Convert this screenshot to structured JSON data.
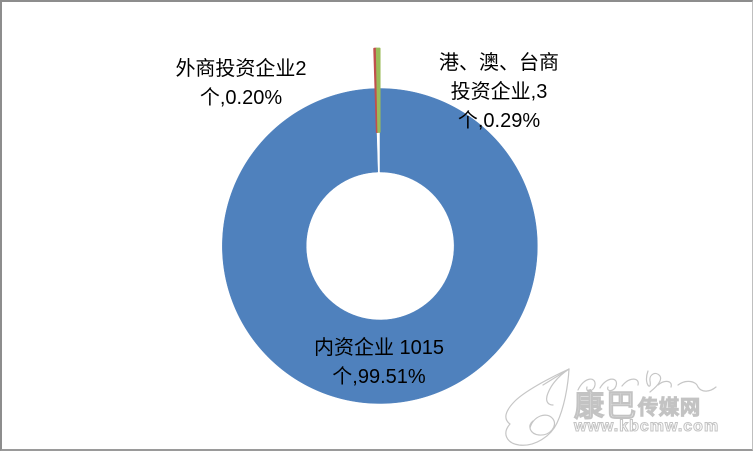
{
  "frame": {
    "background": "#ffffff",
    "border_color": "#8d8d8d"
  },
  "chart_data": {
    "type": "pie",
    "subtype": "doughnut",
    "title": "",
    "legend_position": "none",
    "categories": [
      "内资企业",
      "外商投资企业",
      "港、澳、台商投资企业"
    ],
    "values": [
      1015,
      2,
      3
    ],
    "unit": "个",
    "percent_labels": [
      "99.51%",
      "0.20%",
      "0.29%"
    ],
    "colors": [
      "#4f81bd",
      "#c0504d",
      "#9bbb59"
    ],
    "exploded": [
      false,
      true,
      true
    ],
    "data_labels": [
      {
        "lines": [
          "内资企业 1015",
          "个,99.51%"
        ]
      },
      {
        "lines": [
          "外商投资企业2",
          "个,0.20%"
        ]
      },
      {
        "lines": [
          "港、澳、台商",
          "投资企业,3",
          "个,0.29%"
        ]
      }
    ]
  },
  "watermark": {
    "brand_full": "康巴传媒网",
    "brand_primary": "康巴",
    "brand_secondary": "传媒网",
    "url": "www.kbcmw.com",
    "color": "#c3c3c3"
  }
}
